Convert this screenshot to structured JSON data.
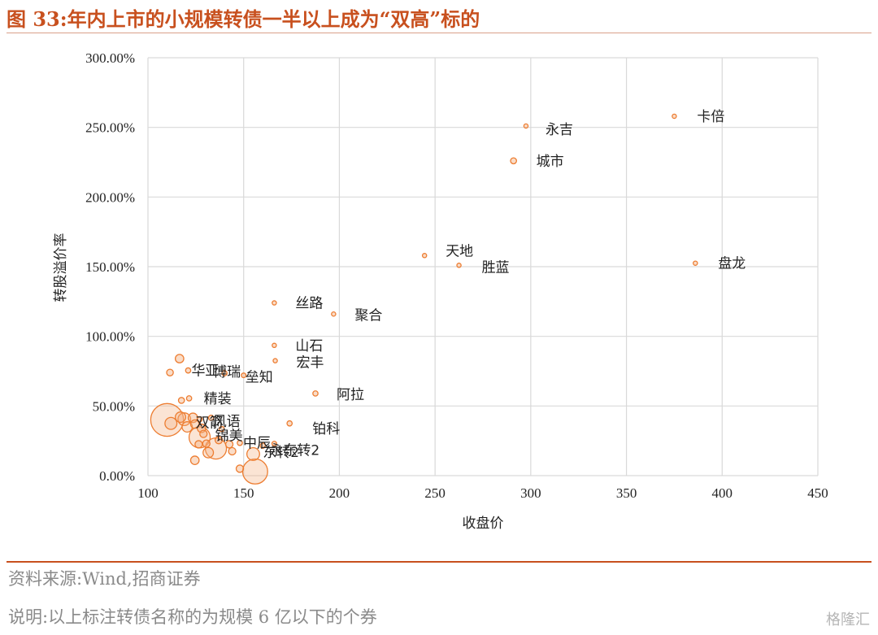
{
  "header": {
    "title": "图 33:年内上市的小规模转债一半以上成为“双高”标的"
  },
  "footer": {
    "source": "资料来源:Wind,招商证券",
    "note": "说明:以上标注转债名称的为规模 6 亿以下的个券",
    "watermark": "格隆汇"
  },
  "colors": {
    "marker_fill": "#f4b183",
    "marker_stroke": "#ed7d31",
    "grid": "#d9d9d9",
    "title": "#c8501e"
  },
  "chart_data": {
    "type": "scatter",
    "title": "",
    "xlabel": "收盘价",
    "ylabel": "转股溢价率",
    "xlim": [
      100,
      450
    ],
    "ylim": [
      0,
      300
    ],
    "x_ticks": [
      100,
      150,
      200,
      250,
      300,
      350,
      400,
      450
    ],
    "y_ticks": [
      0,
      50,
      100,
      150,
      200,
      250,
      300
    ],
    "x_tick_labels": [
      "100",
      "150",
      "200",
      "250",
      "300",
      "350",
      "400",
      "450"
    ],
    "y_tick_labels": [
      "0.00%",
      "50.00%",
      "100.00%",
      "150.00%",
      "200.00%",
      "250.00%",
      "300.00%"
    ],
    "grid": true,
    "bubble_size_meaning": "规模",
    "labeled_points": [
      {
        "name": "卡倍",
        "x": 375,
        "y": 258,
        "size": 1
      },
      {
        "name": "永吉",
        "x": 297.5,
        "y": 251,
        "size": 0.8
      },
      {
        "name": "城市",
        "x": 291,
        "y": 226,
        "size": 2
      },
      {
        "name": "天地",
        "x": 244.5,
        "y": 158,
        "size": 0.8
      },
      {
        "name": "胜蓝",
        "x": 262.5,
        "y": 151,
        "size": 1
      },
      {
        "name": "盘龙",
        "x": 386,
        "y": 152.5,
        "size": 1
      },
      {
        "name": "丝路",
        "x": 166,
        "y": 124,
        "size": 1
      },
      {
        "name": "聚合",
        "x": 197,
        "y": 116,
        "size": 0.8
      },
      {
        "name": "山石",
        "x": 166,
        "y": 93.5,
        "size": 1
      },
      {
        "name": "宏丰",
        "x": 166.5,
        "y": 82.5,
        "size": 1
      },
      {
        "name": "博瑞",
        "x": 140,
        "y": 73.5,
        "size": 1.5
      },
      {
        "name": "华亚",
        "x": 121,
        "y": 75.5,
        "size": 1.5
      },
      {
        "name": "垒知",
        "x": 150,
        "y": 72,
        "size": 1.2
      },
      {
        "name": "阿拉",
        "x": 187.5,
        "y": 59,
        "size": 1.5
      },
      {
        "name": "精装",
        "x": 121.5,
        "y": 55.5,
        "size": 1.5
      },
      {
        "name": "铂科",
        "x": 174,
        "y": 37.5,
        "size": 1.5
      },
      {
        "name": "风语",
        "x": 133,
        "y": 41.5,
        "size": 1.5
      },
      {
        "name": "双箭",
        "x": 127,
        "y": 40.5,
        "size": 1.5
      },
      {
        "name": "锦美",
        "x": 138.5,
        "y": 33.5,
        "size": 1.5
      },
      {
        "name": "中辰",
        "x": 148,
        "y": 23.5,
        "size": 1.5
      },
      {
        "name": "东转2",
        "x": 160,
        "y": 21.5,
        "size": 1.5
      },
      {
        "name": "永东转2",
        "x": 166,
        "y": 23,
        "size": 1.2
      }
    ],
    "unlabeled_points": [
      {
        "x": 116.5,
        "y": 84,
        "size": 4
      },
      {
        "x": 111.5,
        "y": 74,
        "size": 2.5
      },
      {
        "x": 117.5,
        "y": 54,
        "size": 2
      },
      {
        "x": 110,
        "y": 40,
        "size": 60
      },
      {
        "x": 112,
        "y": 37.5,
        "size": 8
      },
      {
        "x": 117,
        "y": 42,
        "size": 6
      },
      {
        "x": 119,
        "y": 40.5,
        "size": 9
      },
      {
        "x": 120.5,
        "y": 35,
        "size": 6
      },
      {
        "x": 123.5,
        "y": 41.5,
        "size": 5
      },
      {
        "x": 124.5,
        "y": 37,
        "size": 4
      },
      {
        "x": 127,
        "y": 27.5,
        "size": 25
      },
      {
        "x": 128,
        "y": 34,
        "size": 4
      },
      {
        "x": 129,
        "y": 30,
        "size": 3
      },
      {
        "x": 130.5,
        "y": 23,
        "size": 3
      },
      {
        "x": 131.5,
        "y": 16.5,
        "size": 6
      },
      {
        "x": 135.5,
        "y": 19.5,
        "size": 25
      },
      {
        "x": 137,
        "y": 25.5,
        "size": 3
      },
      {
        "x": 142.5,
        "y": 22.5,
        "size": 3
      },
      {
        "x": 144,
        "y": 17.5,
        "size": 3
      },
      {
        "x": 124.5,
        "y": 11,
        "size": 4
      },
      {
        "x": 126.5,
        "y": 22.5,
        "size": 3
      },
      {
        "x": 148,
        "y": 5,
        "size": 3
      },
      {
        "x": 155,
        "y": 15.5,
        "size": 9
      },
      {
        "x": 156,
        "y": 3,
        "size": 35
      }
    ]
  }
}
